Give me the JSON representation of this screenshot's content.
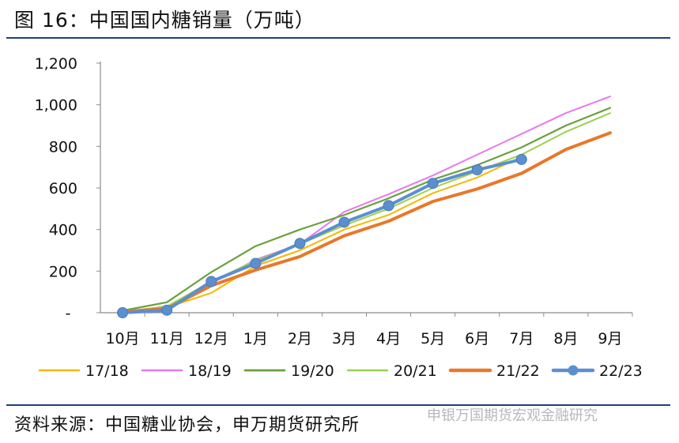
{
  "title": "图 16：中国国内糖销量（万吨）",
  "source": "资料来源：中国糖业协会，申万期货研究所",
  "watermark": "申银万国期货宏观金融研究",
  "colors": {
    "rule": "#1f3f7a",
    "17/18": "#f5b800",
    "18/19": "#e879ea",
    "19/20": "#6aa040",
    "20/21": "#9bd04f",
    "21/22": "#e8782a",
    "22/23": "#5b8fd0"
  },
  "chart_data": {
    "type": "line",
    "categories": [
      "10月",
      "11月",
      "12月",
      "1月",
      "2月",
      "3月",
      "4月",
      "5月",
      "6月",
      "7月",
      "8月",
      "9月"
    ],
    "ylim": [
      0,
      1200
    ],
    "yticks": [
      "-",
      "200",
      "400",
      "600",
      "800",
      "1,000",
      "1,200"
    ],
    "grid": false,
    "legend_position": "bottom",
    "series": [
      {
        "name": "17/18",
        "values": [
          5,
          25,
          95,
          225,
          300,
          400,
          470,
          575,
          650,
          750,
          null,
          null
        ]
      },
      {
        "name": "18/19",
        "values": [
          5,
          30,
          140,
          255,
          330,
          485,
          570,
          660,
          760,
          860,
          960,
          1040
        ]
      },
      {
        "name": "19/20",
        "values": [
          10,
          50,
          195,
          320,
          400,
          470,
          550,
          640,
          710,
          795,
          900,
          985
        ]
      },
      {
        "name": "20/21",
        "values": [
          5,
          30,
          150,
          250,
          330,
          420,
          500,
          600,
          680,
          760,
          870,
          960
        ]
      },
      {
        "name": "21/22",
        "values": [
          5,
          20,
          130,
          205,
          270,
          370,
          440,
          535,
          595,
          670,
          785,
          865
        ]
      },
      {
        "name": "22/23",
        "values": [
          0,
          12,
          150,
          237,
          333,
          435,
          515,
          622,
          687,
          737,
          null,
          null
        ]
      }
    ]
  }
}
